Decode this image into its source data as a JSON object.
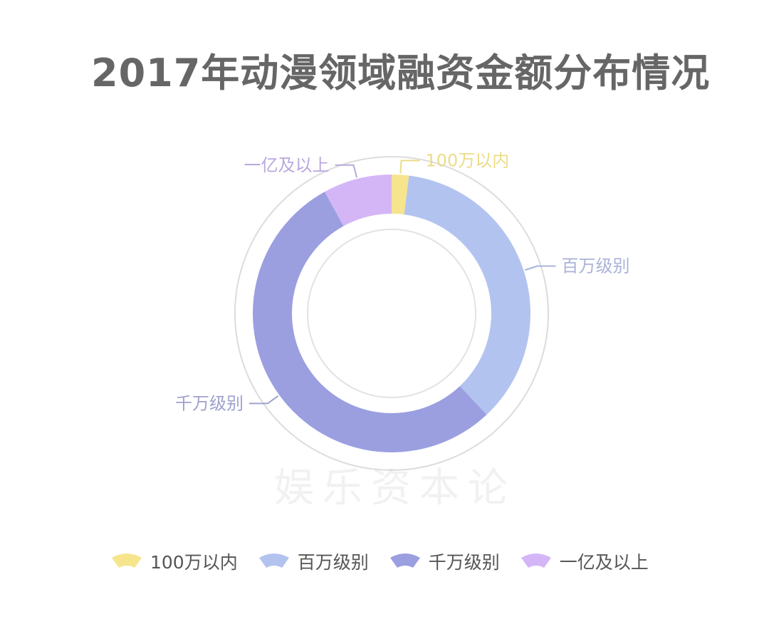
{
  "chart_data": {
    "type": "pie",
    "style": "donut",
    "title": "2017年动漫领域融资金额分布情况",
    "categories": [
      "100万以内",
      "百万级别",
      "千万级别",
      "一亿及以上"
    ],
    "values": [
      2,
      36,
      54,
      8
    ],
    "colors": [
      "#f6e58d",
      "#b3c3f0",
      "#9b9fe0",
      "#d4b6f7"
    ],
    "legend_position": "bottom",
    "label_colors": [
      "#ecdc86",
      "#a9b3d8",
      "#9fa1cf",
      "#b9a8de"
    ]
  },
  "watermark": "娱乐资本论"
}
